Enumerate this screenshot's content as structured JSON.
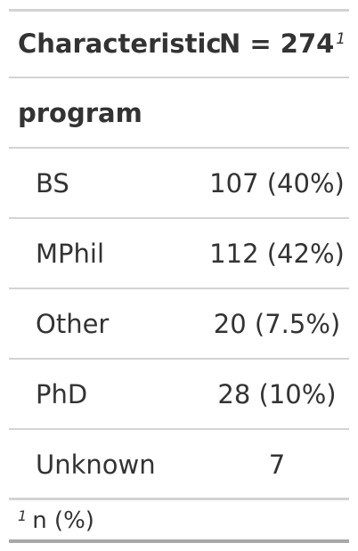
{
  "table": {
    "header": {
      "characteristic": "Characteristic",
      "n_label": "N = 274",
      "n_footnote_mark": "1"
    },
    "group": {
      "label": "program"
    },
    "rows": [
      {
        "label": "BS",
        "value": "107 (40%)"
      },
      {
        "label": "MPhil",
        "value": "112 (42%)"
      },
      {
        "label": "Other",
        "value": "20 (7.5%)"
      },
      {
        "label": "PhD",
        "value": "28 (10%)"
      },
      {
        "label": "Unknown",
        "value": "7"
      }
    ],
    "footnote": {
      "mark": "1",
      "text": "n (%)"
    }
  }
}
